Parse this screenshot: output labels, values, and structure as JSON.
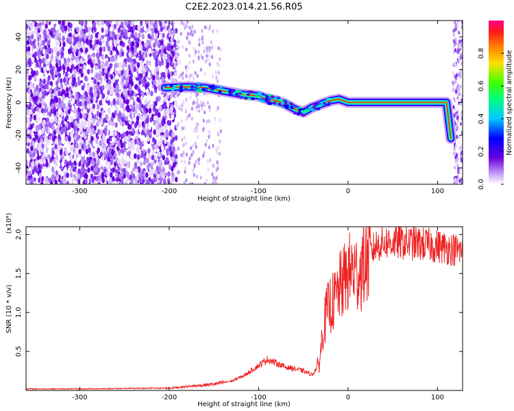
{
  "figure_title": "C2E2.2023.014.21.56.R05",
  "colors": {
    "line": "#ee2222",
    "frame": "#000000",
    "background": "#ffffff"
  },
  "chart_data": [
    {
      "type": "heatmap",
      "xlabel": "Height of straight line (km)",
      "ylabel": "Frequency (Hz)",
      "xlim": [
        -360,
        128
      ],
      "ylim": [
        -50,
        50
      ],
      "x_ticks": [
        -300,
        -200,
        -100,
        0,
        100
      ],
      "y_ticks": [
        -40,
        -20,
        0,
        20,
        40
      ],
      "colorbar": {
        "label": "Normalized spectral amplitude",
        "range": [
          0,
          1
        ],
        "ticks": [
          0.0,
          0.2,
          0.4,
          0.6,
          0.8
        ],
        "colormap": "rainbow"
      },
      "ridge": [
        {
          "x": -205,
          "y": 9
        },
        {
          "x": -180,
          "y": 9.5
        },
        {
          "x": -160,
          "y": 9
        },
        {
          "x": -140,
          "y": 7
        },
        {
          "x": -120,
          "y": 5
        },
        {
          "x": -100,
          "y": 4
        },
        {
          "x": -90,
          "y": 2
        },
        {
          "x": -80,
          "y": 1
        },
        {
          "x": -70,
          "y": -1
        },
        {
          "x": -60,
          "y": -4
        },
        {
          "x": -50,
          "y": -6
        },
        {
          "x": -40,
          "y": -3
        },
        {
          "x": -30,
          "y": -1
        },
        {
          "x": -20,
          "y": 1
        },
        {
          "x": -10,
          "y": 2
        },
        {
          "x": 0,
          "y": 0
        },
        {
          "x": 110,
          "y": 0
        },
        {
          "x": 115,
          "y": -22
        }
      ]
    },
    {
      "type": "line",
      "xlabel": "Height of straight line (km)",
      "ylabel": "SNR (10 * v/v)",
      "y_multiplier": "(x10⁴)",
      "xlim": [
        -360,
        128
      ],
      "ylim": [
        0,
        21000
      ],
      "x_ticks": [
        -300,
        -200,
        -100,
        0,
        100
      ],
      "y_ticks": [
        5000,
        10000,
        15000,
        20000
      ],
      "y_tick_labels": [
        "0.5",
        "1.0",
        "1.5",
        "2.0"
      ],
      "series": [
        {
          "points": [
            {
              "x": -360,
              "y": 200
            },
            {
              "x": -300,
              "y": 200
            },
            {
              "x": -250,
              "y": 250
            },
            {
              "x": -200,
              "y": 300
            },
            {
              "x": -170,
              "y": 600
            },
            {
              "x": -150,
              "y": 800
            },
            {
              "x": -130,
              "y": 1200
            },
            {
              "x": -115,
              "y": 2000
            },
            {
              "x": -100,
              "y": 3200
            },
            {
              "x": -90,
              "y": 4000
            },
            {
              "x": -80,
              "y": 3500
            },
            {
              "x": -70,
              "y": 3000
            },
            {
              "x": -60,
              "y": 2800
            },
            {
              "x": -50,
              "y": 2500
            },
            {
              "x": -40,
              "y": 2000
            },
            {
              "x": -32,
              "y": 3500
            },
            {
              "x": -28,
              "y": 8000
            },
            {
              "x": -24,
              "y": 10000
            },
            {
              "x": -20,
              "y": 11000
            },
            {
              "x": -15,
              "y": 11500
            },
            {
              "x": -10,
              "y": 13000
            },
            {
              "x": -5,
              "y": 14000
            },
            {
              "x": 0,
              "y": 15000
            },
            {
              "x": 5,
              "y": 15500
            },
            {
              "x": 10,
              "y": 15000
            },
            {
              "x": 15,
              "y": 15500
            },
            {
              "x": 20,
              "y": 16500
            },
            {
              "x": 25,
              "y": 17500
            },
            {
              "x": 30,
              "y": 18500
            },
            {
              "x": 40,
              "y": 19000
            },
            {
              "x": 60,
              "y": 19000
            },
            {
              "x": 80,
              "y": 18800
            },
            {
              "x": 100,
              "y": 18500
            },
            {
              "x": 115,
              "y": 18200
            },
            {
              "x": 128,
              "y": 17800
            }
          ]
        }
      ]
    }
  ]
}
